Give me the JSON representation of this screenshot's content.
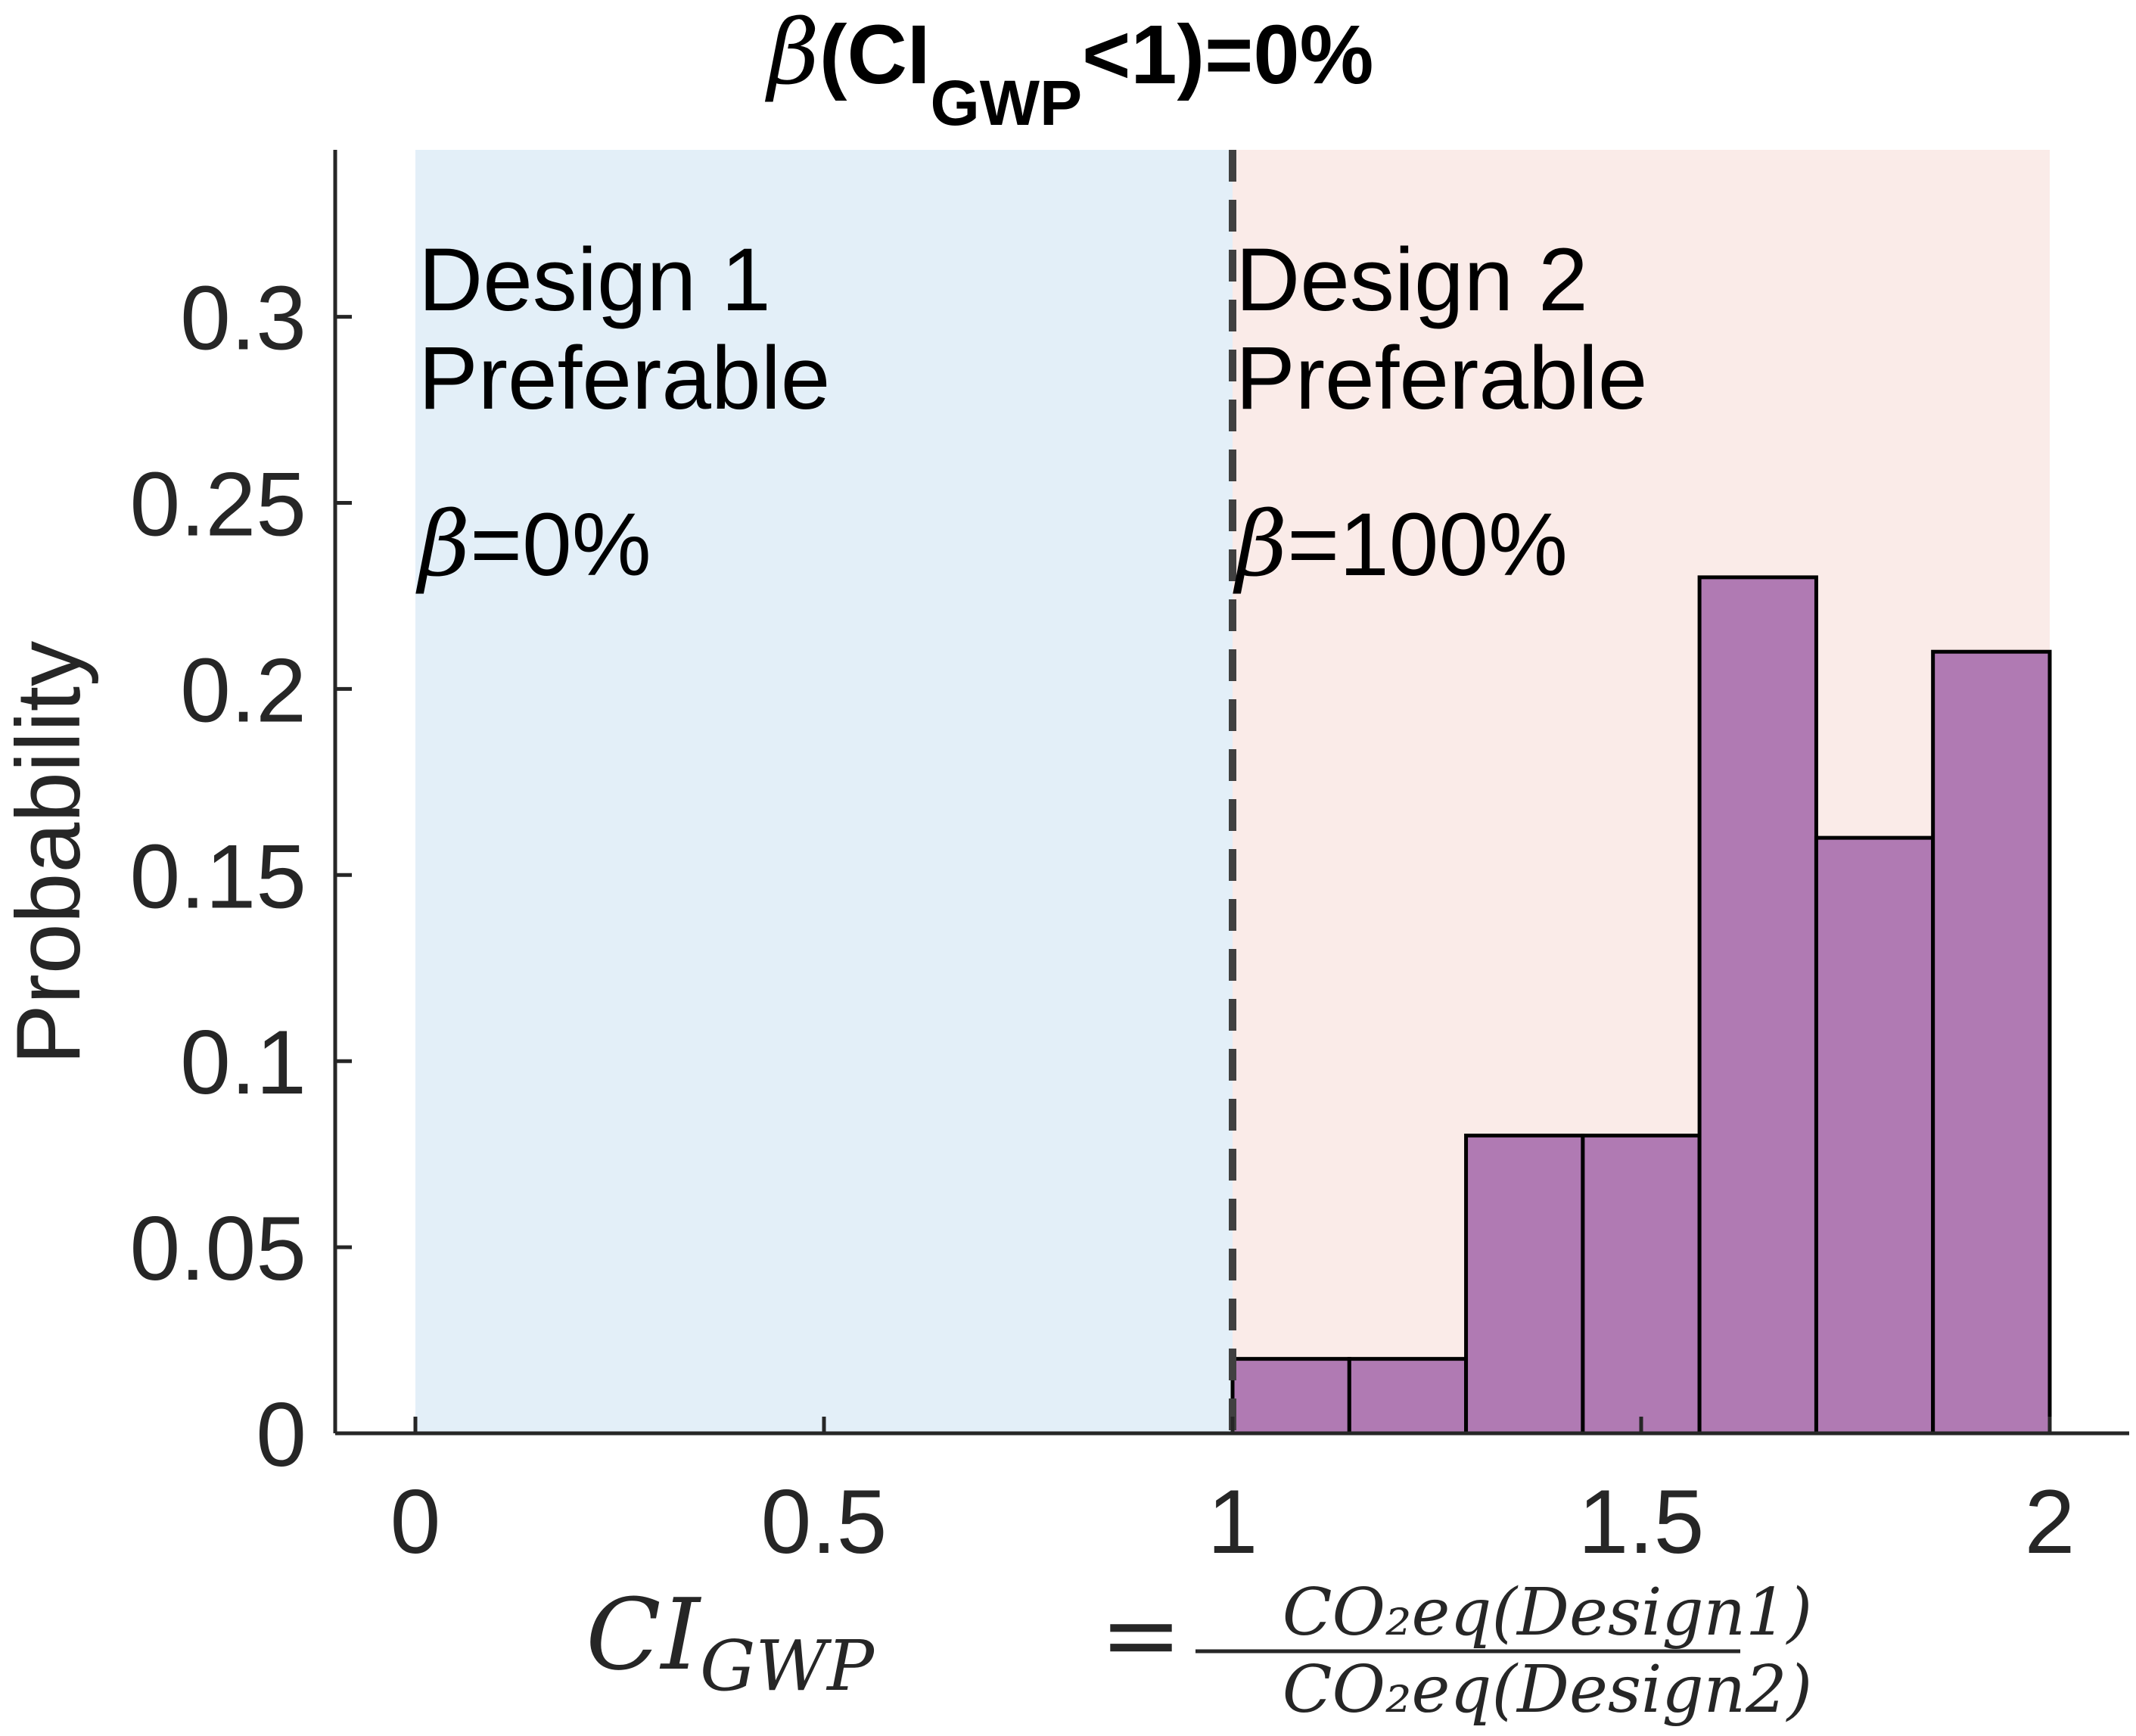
{
  "chart_data": {
    "type": "bar",
    "title": {
      "prefix": "β",
      "main": "(CI",
      "subscript": "GWP",
      "suffix": "<1)=0%"
    },
    "ylabel": "Probability",
    "xlabel": {
      "lhs": "CI",
      "lhs_sub": "GWP",
      "equals": "=",
      "numerator": "CO₂eq(Design1)",
      "denominator": "CO₂eq(Design2)"
    },
    "xlim": [
      0,
      2
    ],
    "ylim": [
      0,
      0.3381
    ],
    "xticks": [
      {
        "value": 0,
        "label": "0"
      },
      {
        "value": 0.5,
        "label": "0.5"
      },
      {
        "value": 1,
        "label": "1"
      },
      {
        "value": 1.5,
        "label": "1.5"
      },
      {
        "value": 2,
        "label": "2"
      }
    ],
    "yticks": [
      {
        "value": 0,
        "label": "0"
      },
      {
        "value": 0.05,
        "label": "0.05"
      },
      {
        "value": 0.1,
        "label": "0.1"
      },
      {
        "value": 0.15,
        "label": "0.15"
      },
      {
        "value": 0.2,
        "label": "0.2"
      },
      {
        "value": 0.25,
        "label": "0.25"
      },
      {
        "value": 0.3,
        "label": "0.3"
      }
    ],
    "bin_edges": [
      1.0,
      1.1429,
      1.2857,
      1.4286,
      1.5714,
      1.7143,
      1.8571,
      2.0
    ],
    "values": [
      0.02,
      0.02,
      0.08,
      0.08,
      0.23,
      0.16,
      0.21
    ],
    "bar_color": "#b07ab3",
    "threshold": 1,
    "regions": [
      {
        "x_range": [
          0,
          1
        ],
        "color": "#e3eff8",
        "lines": [
          "Design 1",
          "Preferable"
        ],
        "beta_symbol": "β",
        "beta_text": "=0%"
      },
      {
        "x_range": [
          1,
          2
        ],
        "color": "#faebe8",
        "lines": [
          "Design 2",
          "Preferable"
        ],
        "beta_symbol": "β",
        "beta_text": "=100%"
      }
    ]
  }
}
